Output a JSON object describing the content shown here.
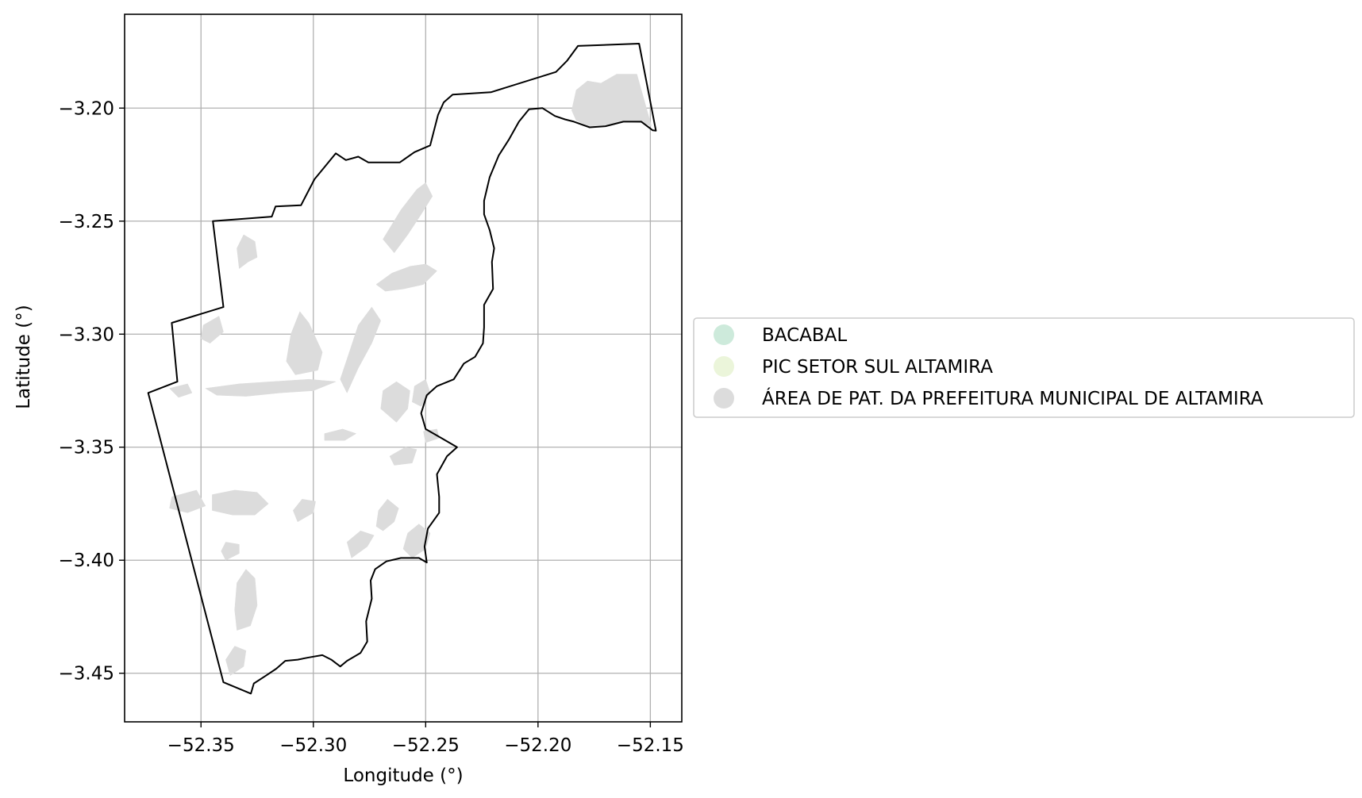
{
  "chart_data": {
    "type": "map",
    "xlabel": "Longitude (°)",
    "ylabel": "Latitude (°)",
    "xlim": [
      -52.384,
      -52.136
    ],
    "ylim": [
      -3.4715,
      -3.1585
    ],
    "x_ticks": [
      -52.35,
      -52.3,
      -52.25,
      -52.2,
      -52.15
    ],
    "x_tick_labels": [
      "−52.35",
      "−52.30",
      "−52.25",
      "−52.20",
      "−52.15"
    ],
    "y_ticks": [
      -3.2,
      -3.25,
      -3.3,
      -3.35,
      -3.4,
      -3.45
    ],
    "y_tick_labels": [
      "−3.20",
      "−3.25",
      "−3.30",
      "−3.35",
      "−3.40",
      "−3.45"
    ],
    "grid": true,
    "legend_position": "center-left, outside right of axes",
    "legend": [
      {
        "label": "BACABAL",
        "color": "#cdeadb"
      },
      {
        "label": "PIC SETOR SUL ALTAMIRA",
        "color": "#ebf5da"
      },
      {
        "label": "ÁREA DE PAT. DA PREFEITURA MUNICIPAL DE ALTAMIRA",
        "color": "#dcdcdc"
      }
    ],
    "boundary": {
      "name": "municipal boundary",
      "color": "#000000",
      "coords": [
        [
          -52.3447,
          -3.25
        ],
        [
          -52.3185,
          -3.248
        ],
        [
          -52.3168,
          -3.2435
        ],
        [
          -52.3055,
          -3.243
        ],
        [
          -52.2995,
          -3.2315
        ],
        [
          -52.2945,
          -3.2255
        ],
        [
          -52.29,
          -3.22
        ],
        [
          -52.2855,
          -3.223
        ],
        [
          -52.28,
          -3.2215
        ],
        [
          -52.2755,
          -3.224
        ],
        [
          -52.2615,
          -3.224
        ],
        [
          -52.255,
          -3.2195
        ],
        [
          -52.248,
          -3.2165
        ],
        [
          -52.2445,
          -3.203
        ],
        [
          -52.242,
          -3.1975
        ],
        [
          -52.238,
          -3.194
        ],
        [
          -52.221,
          -3.193
        ],
        [
          -52.192,
          -3.184
        ],
        [
          -52.187,
          -3.179
        ],
        [
          -52.1822,
          -3.1725
        ],
        [
          -52.155,
          -3.1715
        ],
        [
          -52.1475,
          -3.21
        ],
        [
          -52.149,
          -3.2098
        ],
        [
          -52.154,
          -3.206
        ],
        [
          -52.162,
          -3.206
        ],
        [
          -52.17,
          -3.208
        ],
        [
          -52.177,
          -3.2085
        ],
        [
          -52.184,
          -3.206
        ],
        [
          -52.188,
          -3.205
        ],
        [
          -52.1925,
          -3.2035
        ],
        [
          -52.198,
          -3.2
        ],
        [
          -52.204,
          -3.2005
        ],
        [
          -52.2085,
          -3.206
        ],
        [
          -52.213,
          -3.214
        ],
        [
          -52.2175,
          -3.221
        ],
        [
          -52.2215,
          -3.2305
        ],
        [
          -52.224,
          -3.241
        ],
        [
          -52.224,
          -3.247
        ],
        [
          -52.2215,
          -3.254
        ],
        [
          -52.2195,
          -3.262
        ],
        [
          -52.2205,
          -3.268
        ],
        [
          -52.22,
          -3.28
        ],
        [
          -52.224,
          -3.287
        ],
        [
          -52.224,
          -3.297
        ],
        [
          -52.2245,
          -3.304
        ],
        [
          -52.228,
          -3.31
        ],
        [
          -52.233,
          -3.313
        ],
        [
          -52.2375,
          -3.32
        ],
        [
          -52.245,
          -3.323
        ],
        [
          -52.2495,
          -3.327
        ],
        [
          -52.252,
          -3.335
        ],
        [
          -52.25,
          -3.342
        ],
        [
          -52.243,
          -3.346
        ],
        [
          -52.236,
          -3.35
        ],
        [
          -52.2405,
          -3.354
        ],
        [
          -52.245,
          -3.362
        ],
        [
          -52.244,
          -3.372
        ],
        [
          -52.244,
          -3.379
        ],
        [
          -52.249,
          -3.386
        ],
        [
          -52.2505,
          -3.394
        ],
        [
          -52.2495,
          -3.401
        ],
        [
          -52.253,
          -3.399
        ],
        [
          -52.261,
          -3.399
        ],
        [
          -52.2675,
          -3.4005
        ],
        [
          -52.2725,
          -3.404
        ],
        [
          -52.2745,
          -3.409
        ],
        [
          -52.274,
          -3.417
        ],
        [
          -52.2765,
          -3.427
        ],
        [
          -52.276,
          -3.436
        ],
        [
          -52.279,
          -3.441
        ],
        [
          -52.285,
          -3.4445
        ],
        [
          -52.288,
          -3.447
        ],
        [
          -52.292,
          -3.444
        ],
        [
          -52.296,
          -3.442
        ],
        [
          -52.302,
          -3.443
        ],
        [
          -52.307,
          -3.444
        ],
        [
          -52.3125,
          -3.4445
        ],
        [
          -52.3165,
          -3.448
        ],
        [
          -52.321,
          -3.451
        ],
        [
          -52.3265,
          -3.4545
        ],
        [
          -52.3278,
          -3.459
        ],
        [
          -52.34,
          -3.454
        ],
        [
          -52.3735,
          -3.326
        ],
        [
          -52.3605,
          -3.321
        ],
        [
          -52.363,
          -3.295
        ],
        [
          -52.34,
          -3.288
        ],
        [
          -52.3447,
          -3.25
        ]
      ]
    },
    "series": [
      {
        "name": "ÁREA DE PAT. DA PREFEITURA MUNICIPAL DE ALTAMIRA",
        "color": "#dcdcdc",
        "polygons": [
          [
            [
              -52.185,
              -3.201
            ],
            [
              -52.183,
              -3.192
            ],
            [
              -52.178,
              -3.188
            ],
            [
              -52.172,
              -3.189
            ],
            [
              -52.165,
              -3.185
            ],
            [
              -52.156,
              -3.185
            ],
            [
              -52.1495,
              -3.208
            ],
            [
              -52.154,
              -3.2065
            ],
            [
              -52.162,
              -3.206
            ],
            [
              -52.17,
              -3.2075
            ],
            [
              -52.177,
              -3.208
            ],
            [
              -52.183,
              -3.2055
            ]
          ],
          [
            [
              -52.269,
              -3.258
            ],
            [
              -52.261,
              -3.245
            ],
            [
              -52.254,
              -3.236
            ],
            [
              -52.25,
              -3.233
            ],
            [
              -52.247,
              -3.239
            ],
            [
              -52.252,
              -3.247
            ],
            [
              -52.258,
              -3.256
            ],
            [
              -52.264,
              -3.264
            ]
          ],
          [
            [
              -52.272,
              -3.278
            ],
            [
              -52.265,
              -3.273
            ],
            [
              -52.257,
              -3.27
            ],
            [
              -52.25,
              -3.269
            ],
            [
              -52.245,
              -3.272
            ],
            [
              -52.251,
              -3.278
            ],
            [
              -52.26,
              -3.28
            ],
            [
              -52.268,
              -3.281
            ]
          ],
          [
            [
              -52.285,
              -3.326
            ],
            [
              -52.28,
              -3.315
            ],
            [
              -52.274,
              -3.304
            ],
            [
              -52.27,
              -3.294
            ],
            [
              -52.274,
              -3.288
            ],
            [
              -52.28,
              -3.296
            ],
            [
              -52.284,
              -3.308
            ],
            [
              -52.288,
              -3.32
            ]
          ],
          [
            [
              -52.308,
              -3.318
            ],
            [
              -52.298,
              -3.316
            ],
            [
              -52.296,
              -3.308
            ],
            [
              -52.302,
              -3.295
            ],
            [
              -52.306,
              -3.29
            ],
            [
              -52.31,
              -3.3
            ],
            [
              -52.312,
              -3.312
            ]
          ],
          [
            [
              -52.348,
              -3.324
            ],
            [
              -52.333,
              -3.322
            ],
            [
              -52.318,
              -3.321
            ],
            [
              -52.302,
              -3.32
            ],
            [
              -52.29,
              -3.321
            ],
            [
              -52.3,
              -3.325
            ],
            [
              -52.315,
              -3.326
            ],
            [
              -52.33,
              -3.3275
            ],
            [
              -52.343,
              -3.327
            ]
          ],
          [
            [
              -52.333,
              -3.271
            ],
            [
              -52.329,
              -3.268
            ],
            [
              -52.325,
              -3.266
            ],
            [
              -52.326,
              -3.259
            ],
            [
              -52.331,
              -3.256
            ],
            [
              -52.334,
              -3.262
            ]
          ],
          [
            [
              -52.346,
              -3.304
            ],
            [
              -52.34,
              -3.299
            ],
            [
              -52.342,
              -3.292
            ],
            [
              -52.349,
              -3.296
            ],
            [
              -52.35,
              -3.302
            ]
          ],
          [
            [
              -52.345,
              -3.371
            ],
            [
              -52.335,
              -3.369
            ],
            [
              -52.325,
              -3.37
            ],
            [
              -52.32,
              -3.375
            ],
            [
              -52.326,
              -3.38
            ],
            [
              -52.336,
              -3.38
            ],
            [
              -52.345,
              -3.378
            ]
          ],
          [
            [
              -52.334,
              -3.431
            ],
            [
              -52.328,
              -3.429
            ],
            [
              -52.325,
              -3.42
            ],
            [
              -52.326,
              -3.408
            ],
            [
              -52.33,
              -3.404
            ],
            [
              -52.334,
              -3.41
            ],
            [
              -52.335,
              -3.422
            ]
          ],
          [
            [
              -52.339,
              -3.4
            ],
            [
              -52.333,
              -3.397
            ],
            [
              -52.333,
              -3.393
            ],
            [
              -52.339,
              -3.392
            ],
            [
              -52.341,
              -3.396
            ]
          ],
          [
            [
              -52.337,
              -3.451
            ],
            [
              -52.331,
              -3.447
            ],
            [
              -52.33,
              -3.44
            ],
            [
              -52.335,
              -3.438
            ],
            [
              -52.339,
              -3.444
            ]
          ],
          [
            [
              -52.263,
              -3.339
            ],
            [
              -52.258,
              -3.333
            ],
            [
              -52.257,
              -3.325
            ],
            [
              -52.263,
              -3.321
            ],
            [
              -52.269,
              -3.325
            ],
            [
              -52.27,
              -3.333
            ]
          ],
          [
            [
              -52.252,
              -3.332
            ],
            [
              -52.248,
              -3.326
            ],
            [
              -52.25,
              -3.32
            ],
            [
              -52.255,
              -3.323
            ],
            [
              -52.256,
              -3.33
            ]
          ],
          [
            [
              -52.25,
              -3.348
            ],
            [
              -52.244,
              -3.346
            ],
            [
              -52.245,
              -3.342
            ],
            [
              -52.251,
              -3.343
            ]
          ],
          [
            [
              -52.295,
              -3.344
            ],
            [
              -52.287,
              -3.342
            ],
            [
              -52.281,
              -3.344
            ],
            [
              -52.286,
              -3.347
            ],
            [
              -52.295,
              -3.347
            ]
          ],
          [
            [
              -52.266,
              -3.354
            ],
            [
              -52.259,
              -3.35
            ],
            [
              -52.254,
              -3.351
            ],
            [
              -52.256,
              -3.357
            ],
            [
              -52.264,
              -3.358
            ]
          ],
          [
            [
              -52.307,
              -3.383
            ],
            [
              -52.3,
              -3.379
            ],
            [
              -52.299,
              -3.374
            ],
            [
              -52.305,
              -3.373
            ],
            [
              -52.309,
              -3.378
            ]
          ],
          [
            [
              -52.269,
              -3.387
            ],
            [
              -52.264,
              -3.383
            ],
            [
              -52.262,
              -3.377
            ],
            [
              -52.267,
              -3.373
            ],
            [
              -52.271,
              -3.378
            ],
            [
              -52.272,
              -3.385
            ]
          ],
          [
            [
              -52.256,
              -3.399
            ],
            [
              -52.25,
              -3.395
            ],
            [
              -52.248,
              -3.388
            ],
            [
              -52.253,
              -3.384
            ],
            [
              -52.258,
              -3.388
            ],
            [
              -52.26,
              -3.395
            ]
          ],
          [
            [
              -52.283,
              -3.399
            ],
            [
              -52.276,
              -3.394
            ],
            [
              -52.273,
              -3.389
            ],
            [
              -52.279,
              -3.387
            ],
            [
              -52.285,
              -3.392
            ]
          ],
          [
            [
              -52.364,
              -3.324
            ],
            [
              -52.356,
              -3.322
            ],
            [
              -52.354,
              -3.326
            ],
            [
              -52.36,
              -3.328
            ]
          ],
          [
            [
              -52.363,
              -3.372
            ],
            [
              -52.352,
              -3.369
            ],
            [
              -52.348,
              -3.376
            ],
            [
              -52.356,
              -3.379
            ],
            [
              -52.364,
              -3.377
            ]
          ]
        ]
      }
    ]
  }
}
